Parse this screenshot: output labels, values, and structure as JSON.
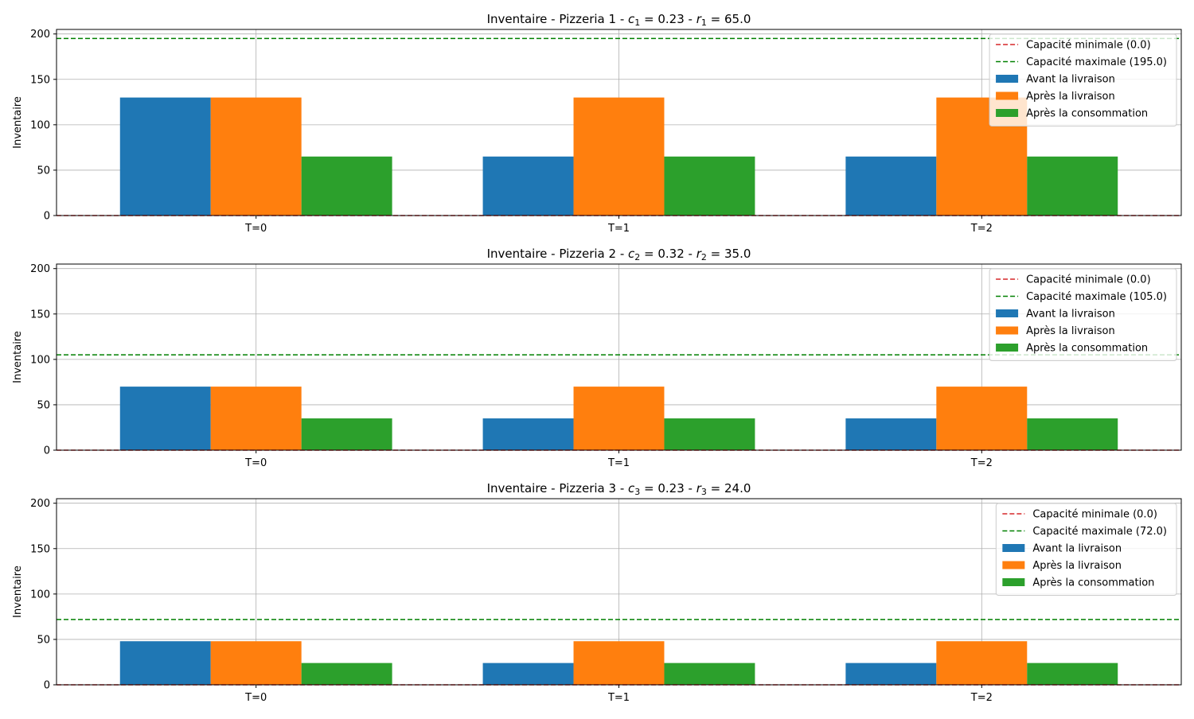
{
  "figure": {
    "colors": {
      "before": "#1f77b4",
      "after_delivery": "#ff7f0e",
      "after_consumption": "#2ca02c",
      "min_line": "#d62728",
      "max_line": "#008000",
      "grid": "#b0b0b0"
    }
  },
  "chart_data": [
    {
      "type": "bar",
      "title": {
        "prefix": "Inventaire - Pizzeria 1 - ",
        "c_var": "c",
        "c_sub": "1",
        "c_value": " = 0.23",
        "sep": " - ",
        "r_var": "r",
        "r_sub": "1",
        "r_value": " = 65.0"
      },
      "ylabel": "Inventaire",
      "ylim": [
        0,
        205
      ],
      "yticks": [
        0,
        50,
        100,
        150,
        200
      ],
      "grid": true,
      "legend_position": "top-right",
      "categories": [
        "T=0",
        "T=1",
        "T=2"
      ],
      "series": [
        {
          "name": "Avant la livraison",
          "color_key": "before",
          "values": [
            130,
            65,
            65
          ]
        },
        {
          "name": "Après la livraison",
          "color_key": "after_delivery",
          "values": [
            130,
            130,
            130
          ]
        },
        {
          "name": "Après la consommation",
          "color_key": "after_consumption",
          "values": [
            65,
            65,
            65
          ]
        }
      ],
      "hlines": [
        {
          "name": "Capacité minimale (0.0)",
          "color_key": "min_line",
          "value": 0.0
        },
        {
          "name": "Capacité maximale (195.0)",
          "color_key": "max_line",
          "value": 195.0
        }
      ]
    },
    {
      "type": "bar",
      "title": {
        "prefix": "Inventaire - Pizzeria 2 - ",
        "c_var": "c",
        "c_sub": "2",
        "c_value": " = 0.32",
        "sep": " - ",
        "r_var": "r",
        "r_sub": "2",
        "r_value": " = 35.0"
      },
      "ylabel": "Inventaire",
      "ylim": [
        0,
        205
      ],
      "yticks": [
        0,
        50,
        100,
        150,
        200
      ],
      "grid": true,
      "legend_position": "top-right",
      "categories": [
        "T=0",
        "T=1",
        "T=2"
      ],
      "series": [
        {
          "name": "Avant la livraison",
          "color_key": "before",
          "values": [
            70,
            35,
            35
          ]
        },
        {
          "name": "Après la livraison",
          "color_key": "after_delivery",
          "values": [
            70,
            70,
            70
          ]
        },
        {
          "name": "Après la consommation",
          "color_key": "after_consumption",
          "values": [
            35,
            35,
            35
          ]
        }
      ],
      "hlines": [
        {
          "name": "Capacité minimale (0.0)",
          "color_key": "min_line",
          "value": 0.0
        },
        {
          "name": "Capacité maximale (105.0)",
          "color_key": "max_line",
          "value": 105.0
        }
      ]
    },
    {
      "type": "bar",
      "title": {
        "prefix": "Inventaire - Pizzeria 3 - ",
        "c_var": "c",
        "c_sub": "3",
        "c_value": " = 0.23",
        "sep": " - ",
        "r_var": "r",
        "r_sub": "3",
        "r_value": " = 24.0"
      },
      "ylabel": "Inventaire",
      "ylim": [
        0,
        205
      ],
      "yticks": [
        0,
        50,
        100,
        150,
        200
      ],
      "grid": true,
      "legend_position": "top-right",
      "categories": [
        "T=0",
        "T=1",
        "T=2"
      ],
      "series": [
        {
          "name": "Avant la livraison",
          "color_key": "before",
          "values": [
            48,
            24,
            24
          ]
        },
        {
          "name": "Après la livraison",
          "color_key": "after_delivery",
          "values": [
            48,
            48,
            48
          ]
        },
        {
          "name": "Après la consommation",
          "color_key": "after_consumption",
          "values": [
            24,
            24,
            24
          ]
        }
      ],
      "hlines": [
        {
          "name": "Capacité minimale (0.0)",
          "color_key": "min_line",
          "value": 0.0
        },
        {
          "name": "Capacité maximale (72.0)",
          "color_key": "max_line",
          "value": 72.0
        }
      ]
    }
  ]
}
